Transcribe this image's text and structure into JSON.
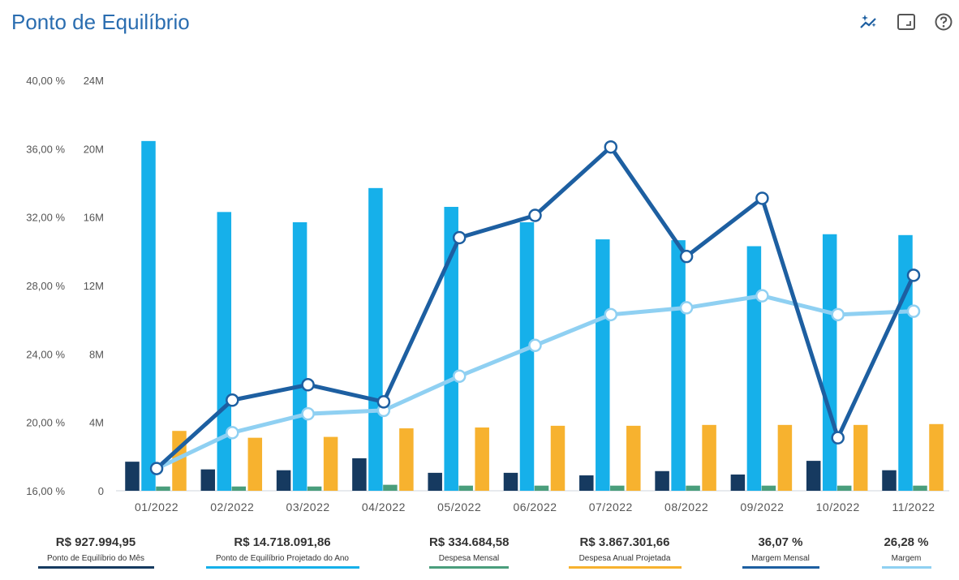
{
  "header": {
    "title": "Ponto de Equilíbrio"
  },
  "toolbar": {
    "icons": [
      "sparkle-chart-icon",
      "expand-icon",
      "help-icon"
    ]
  },
  "colors": {
    "ponto_mes": "#163a60",
    "ponto_ano": "#16b0ea",
    "despesa_mensal": "#4a9e7c",
    "despesa_anual": "#f7b22f",
    "margem_mensal": "#1d5fa1",
    "margem": "#8fd0f2",
    "axis_text": "#555555",
    "title": "#2a6db0"
  },
  "chart_data": {
    "type": "bar+line",
    "categories": [
      "01/2022",
      "02/2022",
      "03/2022",
      "04/2022",
      "05/2022",
      "06/2022",
      "07/2022",
      "08/2022",
      "09/2022",
      "10/2022",
      "11/2022"
    ],
    "left_axis": {
      "range": [
        16,
        40
      ],
      "ticks": [
        "16,00 %",
        "20,00 %",
        "24,00 %",
        "28,00 %",
        "32,00 %",
        "36,00 %",
        "40,00 %"
      ],
      "tick_values": [
        16,
        20,
        24,
        28,
        32,
        36,
        40
      ]
    },
    "right_axis": {
      "range": [
        0,
        24
      ],
      "ticks": [
        "0",
        "4M",
        "8M",
        "12M",
        "16M",
        "20M",
        "24M"
      ],
      "tick_values": [
        0,
        4,
        8,
        12,
        16,
        20,
        24
      ]
    },
    "bar_series": [
      {
        "name": "Ponto de Equilíbrio do Mês",
        "color_key": "ponto_mes",
        "values": [
          1.7,
          1.25,
          1.2,
          1.9,
          1.05,
          1.05,
          0.9,
          1.15,
          0.95,
          1.75,
          1.2
        ]
      },
      {
        "name": "Ponto de Equilíbrio Projetado do Ano",
        "color_key": "ponto_ano",
        "values": [
          20.45,
          16.3,
          15.7,
          17.7,
          16.6,
          15.7,
          14.7,
          14.65,
          14.3,
          15.0,
          14.95
        ]
      },
      {
        "name": "Despesa Mensal",
        "color_key": "despesa_mensal",
        "values": [
          0.25,
          0.25,
          0.25,
          0.35,
          0.3,
          0.3,
          0.3,
          0.3,
          0.3,
          0.3,
          0.3
        ]
      },
      {
        "name": "Despesa Anual Projetada",
        "color_key": "despesa_anual",
        "values": [
          3.5,
          3.1,
          3.15,
          3.65,
          3.7,
          3.8,
          3.8,
          3.85,
          3.85,
          3.85,
          3.9
        ]
      }
    ],
    "line_series": [
      {
        "name": "Margem Mensal",
        "color_key": "margem_mensal",
        "values": [
          17.3,
          21.3,
          22.2,
          21.2,
          30.8,
          32.1,
          36.1,
          29.7,
          33.1,
          19.1,
          28.6
        ]
      },
      {
        "name": "Margem",
        "color_key": "margem",
        "values": [
          17.3,
          19.4,
          20.5,
          20.7,
          22.7,
          24.5,
          26.3,
          26.7,
          27.4,
          26.3,
          26.5
        ]
      }
    ]
  },
  "legend": [
    {
      "value": "R$ 927.994,95",
      "label": "Ponto de Equilíbrio do Mês",
      "color": "#163a60"
    },
    {
      "value": "R$ 14.718.091,86",
      "label": "Ponto de Equilíbrio Projetado do Ano",
      "color": "#16b0ea"
    },
    {
      "value": "R$ 334.684,58",
      "label": "Despesa Mensal",
      "color": "#4a9e7c"
    },
    {
      "value": "R$ 3.867.301,66",
      "label": "Despesa Anual Projetada",
      "color": "#f7b22f"
    },
    {
      "value": "36,07 %",
      "label": "Margem Mensal",
      "color": "#1d5fa1"
    },
    {
      "value": "26,28 %",
      "label": "Margem",
      "color": "#8fd0f2"
    }
  ]
}
